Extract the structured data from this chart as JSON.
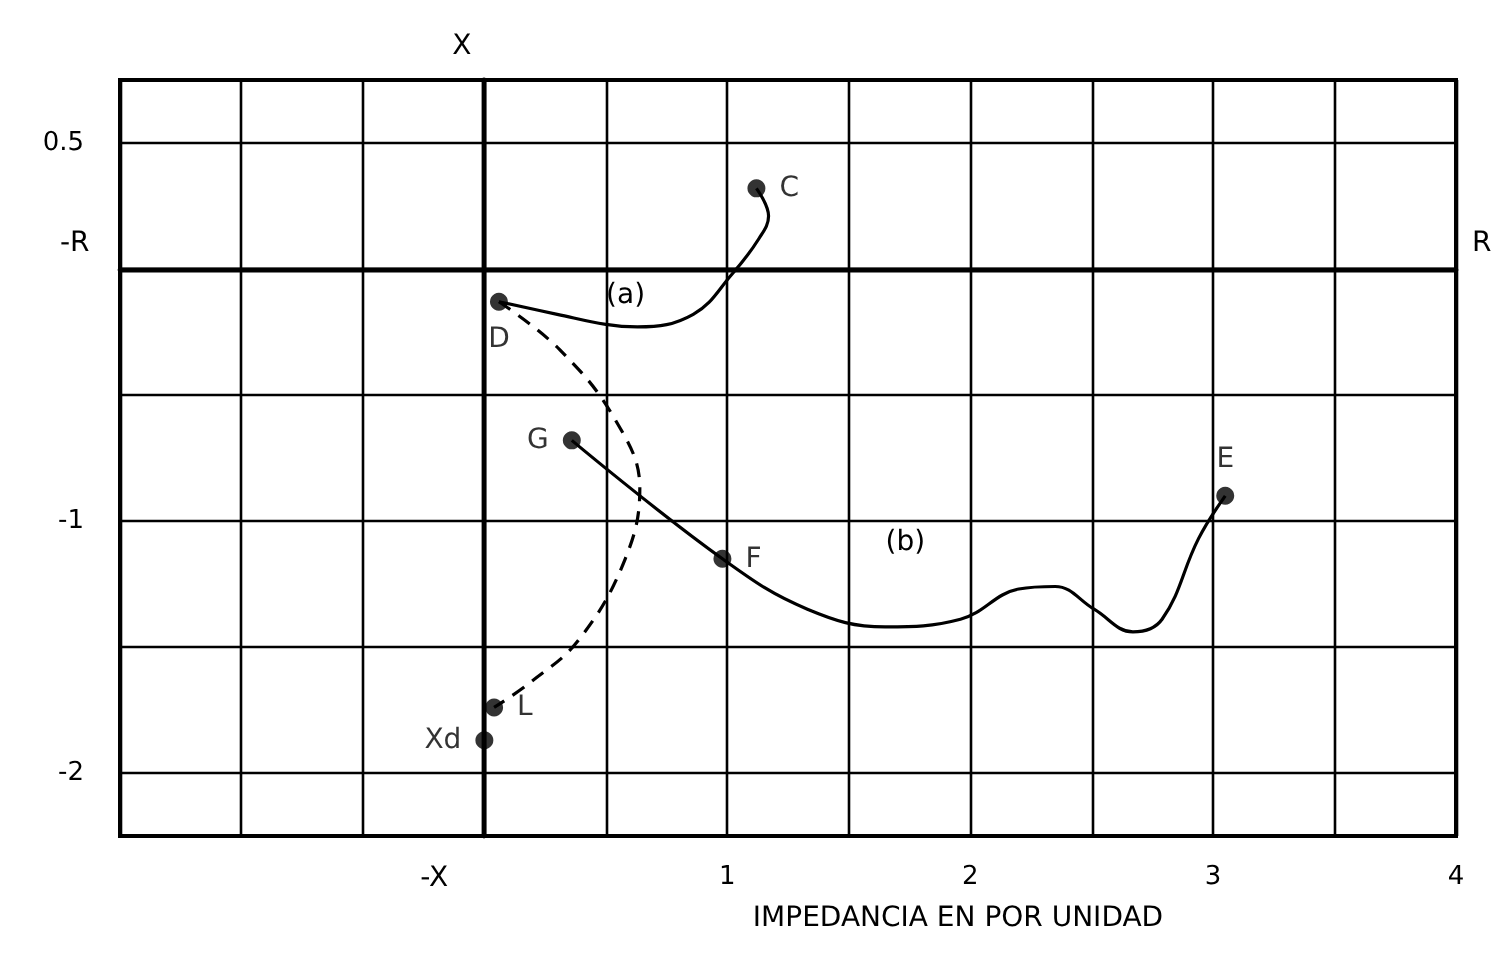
{
  "chart_data": {
    "type": "line",
    "xlabel": "IMPEDANCIA EN POR UNIDAD",
    "ylabel": "X",
    "xlim": [
      -1.5,
      4
    ],
    "ylim": [
      -2.25,
      0.75
    ],
    "xticks": [
      {
        "value": -1.5,
        "label": null
      },
      {
        "value": -1,
        "label": null
      },
      {
        "value": -0.5,
        "label": null
      },
      {
        "value": 0,
        "label": null
      },
      {
        "value": 0.5,
        "label": null
      },
      1,
      {
        "value": 1.5,
        "label": null
      },
      2,
      {
        "value": 2.5,
        "label": null
      },
      3,
      {
        "value": 3.5,
        "label": null
      },
      4
    ],
    "yticks": [
      -2,
      {
        "value": -1.5,
        "label": null
      },
      -1,
      {
        "value": -0.5,
        "label": null
      },
      {
        "value": 0,
        "label": null
      },
      0.5
    ],
    "grid": true,
    "marker": "none",
    "series": [
      {
        "type": "line",
        "color": "#000000",
        "line_style": "solid",
        "x": [
          0.06,
          0.3,
          0.5,
          0.63,
          0.86,
          1.02,
          1.13,
          1.17,
          1.12
        ],
        "values": [
          -0.13,
          -0.18,
          -0.22,
          -0.23,
          -0.18,
          -0.02,
          0.12,
          0.21,
          0.32
        ]
      },
      {
        "type": "line",
        "color": "#000000",
        "line_style": "solid",
        "x": [
          0.36,
          0.98,
          1.33,
          1.65,
          1.96,
          2.2,
          2.35,
          2.51,
          2.67,
          2.79,
          2.94,
          3.05
        ],
        "values": [
          -0.68,
          -1.15,
          -1.35,
          -1.42,
          -1.39,
          -1.27,
          -1.26,
          -1.35,
          -1.44,
          -1.39,
          -1.07,
          -0.9
        ]
      },
      {
        "type": "line",
        "color": "#000000",
        "line_style": "dashed",
        "x": [
          0.06,
          0.31,
          0.54,
          0.64,
          0.58,
          0.39,
          0.19,
          0.04
        ],
        "values": [
          -0.13,
          -0.32,
          -0.6,
          -0.87,
          -1.15,
          -1.47,
          -1.64,
          -1.74
        ]
      },
      {
        "type": "scatter",
        "color": "#000000",
        "marker": "circle",
        "x": [
          1.12,
          0.06,
          0.36,
          0.98,
          3.05,
          0.04,
          0.0
        ],
        "values": [
          0.32,
          -0.13,
          -0.68,
          -1.15,
          -0.9,
          -1.74,
          -1.87
        ],
        "value_labels": [
          "C",
          "D",
          "G",
          "F",
          "E",
          "L",
          "Xd"
        ]
      }
    ],
    "annotations": [
      "(a)",
      "(b)",
      "-R",
      "R",
      "-X"
    ]
  }
}
